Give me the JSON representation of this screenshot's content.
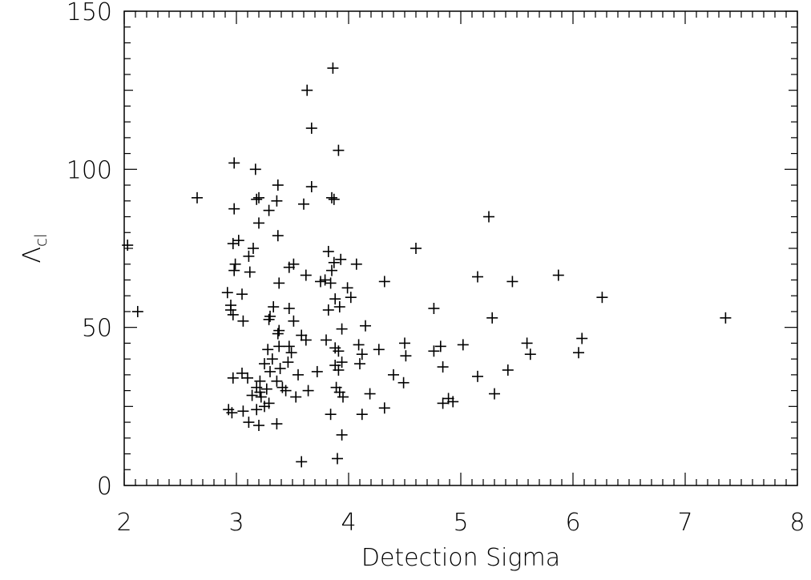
{
  "chart_data": {
    "type": "scatter",
    "title": "",
    "xlabel": "Detection Sigma",
    "ylabel_main": "Λ",
    "ylabel_sub": "cl",
    "xlim": [
      2,
      8
    ],
    "ylim": [
      0,
      150
    ],
    "x_ticks": [
      2,
      3,
      4,
      5,
      6,
      7,
      8
    ],
    "y_ticks": [
      0,
      50,
      100,
      150
    ],
    "x_minor_step": 0.1,
    "y_minor_step": 5,
    "grid": false,
    "marker": "plus",
    "series": [
      {
        "points": [
          [
            2.03,
            76
          ],
          [
            2.12,
            55
          ],
          [
            2.65,
            91
          ],
          [
            2.98,
            102
          ],
          [
            3.17,
            100
          ],
          [
            2.98,
            87.5
          ],
          [
            3.18,
            90.5
          ],
          [
            3.2,
            91
          ],
          [
            3.37,
            95
          ],
          [
            3.36,
            90
          ],
          [
            3.29,
            87
          ],
          [
            3.2,
            83
          ],
          [
            3.37,
            79
          ],
          [
            2.97,
            76.5
          ],
          [
            3.02,
            77.5
          ],
          [
            3.15,
            75
          ],
          [
            3.11,
            72.5
          ],
          [
            2.99,
            70
          ],
          [
            2.98,
            68
          ],
          [
            3.12,
            67.5
          ],
          [
            2.92,
            61
          ],
          [
            3.05,
            60.5
          ],
          [
            2.95,
            57
          ],
          [
            2.95,
            55.5
          ],
          [
            2.97,
            54
          ],
          [
            3.06,
            52
          ],
          [
            3.38,
            64
          ],
          [
            3.47,
            69
          ],
          [
            3.51,
            70
          ],
          [
            3.62,
            66.5
          ],
          [
            3.33,
            56.5
          ],
          [
            3.47,
            56
          ],
          [
            3.3,
            53.5
          ],
          [
            3.29,
            52.5
          ],
          [
            3.51,
            52
          ],
          [
            3.38,
            49
          ],
          [
            3.37,
            48
          ],
          [
            3.58,
            47.5
          ],
          [
            3.62,
            46
          ],
          [
            3.38,
            44
          ],
          [
            3.28,
            43
          ],
          [
            3.32,
            40
          ],
          [
            3.47,
            44
          ],
          [
            3.49,
            42
          ],
          [
            3.25,
            38.5
          ],
          [
            3.39,
            37
          ],
          [
            3.46,
            39
          ],
          [
            3.55,
            35
          ],
          [
            3.3,
            36
          ],
          [
            3.21,
            33
          ],
          [
            3.1,
            34
          ],
          [
            3.18,
            31
          ],
          [
            3.05,
            35.5
          ],
          [
            2.97,
            34
          ],
          [
            3.36,
            33
          ],
          [
            3.27,
            30.5
          ],
          [
            3.41,
            31
          ],
          [
            3.44,
            30
          ],
          [
            3.21,
            29.5
          ],
          [
            3.14,
            28.5
          ],
          [
            3.22,
            28
          ],
          [
            3.53,
            28
          ],
          [
            3.64,
            30
          ],
          [
            3.29,
            26
          ],
          [
            3.25,
            25
          ],
          [
            3.18,
            24
          ],
          [
            3.06,
            23.5
          ],
          [
            2.96,
            23
          ],
          [
            2.93,
            24
          ],
          [
            3.11,
            20
          ],
          [
            3.2,
            19
          ],
          [
            3.36,
            19.5
          ],
          [
            3.58,
            7.5
          ],
          [
            3.63,
            125
          ],
          [
            3.67,
            113
          ],
          [
            3.86,
            132
          ],
          [
            3.91,
            106
          ],
          [
            3.67,
            94.5
          ],
          [
            3.85,
            91
          ],
          [
            3.87,
            90.5
          ],
          [
            3.6,
            89
          ],
          [
            3.82,
            74
          ],
          [
            3.87,
            70.5
          ],
          [
            3.93,
            71.5
          ],
          [
            3.85,
            68
          ],
          [
            3.79,
            65
          ],
          [
            3.75,
            64.5
          ],
          [
            3.84,
            64
          ],
          [
            3.99,
            62.5
          ],
          [
            4.02,
            59.5
          ],
          [
            3.88,
            59
          ],
          [
            3.92,
            56.5
          ],
          [
            3.82,
            55.5
          ],
          [
            4.07,
            70
          ],
          [
            3.94,
            49.5
          ],
          [
            3.8,
            46
          ],
          [
            3.88,
            43.5
          ],
          [
            3.91,
            42.5
          ],
          [
            4.12,
            41.5
          ],
          [
            3.94,
            39
          ],
          [
            3.88,
            38
          ],
          [
            3.91,
            36.5
          ],
          [
            3.72,
            36
          ],
          [
            3.89,
            31
          ],
          [
            3.92,
            29.5
          ],
          [
            3.95,
            28
          ],
          [
            3.84,
            22.5
          ],
          [
            3.94,
            16
          ],
          [
            3.9,
            8.5
          ],
          [
            4.15,
            50.5
          ],
          [
            4.09,
            44.5
          ],
          [
            4.1,
            38.5
          ],
          [
            4.27,
            43
          ],
          [
            4.19,
            29
          ],
          [
            4.12,
            22.5
          ],
          [
            4.32,
            64.5
          ],
          [
            4.6,
            75
          ],
          [
            4.32,
            24.5
          ],
          [
            4.4,
            35
          ],
          [
            4.49,
            32.5
          ],
          [
            4.5,
            45
          ],
          [
            4.51,
            41
          ],
          [
            4.76,
            56
          ],
          [
            4.76,
            42.5
          ],
          [
            4.82,
            44
          ],
          [
            4.84,
            37.5
          ],
          [
            4.84,
            26
          ],
          [
            4.89,
            27.5
          ],
          [
            4.93,
            26.5
          ],
          [
            5.02,
            44.5
          ],
          [
            5.15,
            66
          ],
          [
            5.15,
            34.5
          ],
          [
            5.25,
            85
          ],
          [
            5.28,
            53
          ],
          [
            5.3,
            29
          ],
          [
            5.42,
            36.5
          ],
          [
            5.46,
            64.5
          ],
          [
            5.59,
            45
          ],
          [
            5.62,
            41.5
          ],
          [
            5.87,
            66.5
          ],
          [
            6.05,
            42
          ],
          [
            6.08,
            46.5
          ],
          [
            6.26,
            59.5
          ],
          [
            7.36,
            53
          ]
        ]
      }
    ]
  }
}
